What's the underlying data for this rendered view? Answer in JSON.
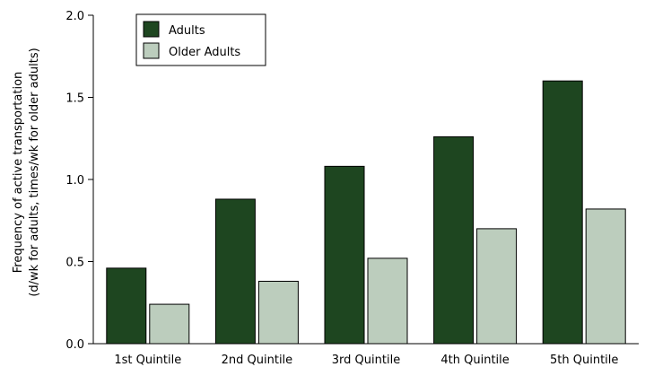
{
  "chart_data": {
    "type": "bar",
    "categories": [
      "1st Quintile",
      "2nd Quintile",
      "3rd Quintile",
      "4th Quintile",
      "5th Quintile"
    ],
    "series": [
      {
        "name": "Adults",
        "values": [
          0.46,
          0.88,
          1.08,
          1.26,
          1.6
        ],
        "color": "#1e4620"
      },
      {
        "name": "Older Adults",
        "values": [
          0.24,
          0.38,
          0.52,
          0.7,
          0.82
        ],
        "color": "#bccdbd"
      }
    ],
    "ylabel_lines": [
      "Frequency of active transportation",
      "(d/wk for adults, times/wk for older adults)"
    ],
    "xlabel": "",
    "ylim": [
      0,
      2.0
    ],
    "yticks": [
      "0.0",
      "0.5",
      "1.0",
      "1.5",
      "2.0"
    ],
    "legend_position": "top-left",
    "grid": false
  }
}
